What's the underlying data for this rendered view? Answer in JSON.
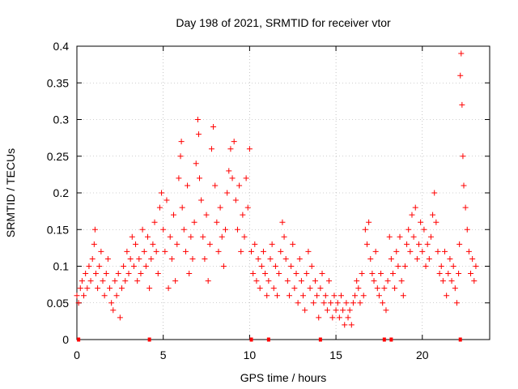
{
  "chart_data": {
    "type": "scatter",
    "title": "Day 198 of 2021, SRMTID for receiver vtor",
    "xlabel": "GPS time / hours",
    "ylabel": "SRMTID / TECUs",
    "xlim": [
      0,
      23.9
    ],
    "ylim": [
      0,
      0.4
    ],
    "xticks": [
      0,
      5,
      10,
      15,
      20
    ],
    "yticks": [
      0,
      0.05,
      0.1,
      0.15,
      0.2,
      0.25,
      0.3,
      0.35,
      0.4
    ],
    "ytick_labels": [
      "0",
      "0.05",
      "0.1",
      "0.15",
      "0.2",
      "0.25",
      "0.3",
      "0.35",
      "0.4"
    ],
    "grid": true,
    "marker": "+",
    "color": "#ff0000",
    "gap_markers_x": [
      0.1,
      4.2,
      10.1,
      11.1,
      14.1,
      17.8,
      18.2,
      22.2
    ],
    "series": [
      {
        "name": "SRMTID",
        "points": [
          [
            0.0,
            0.06
          ],
          [
            0.1,
            0.05
          ],
          [
            0.2,
            0.07
          ],
          [
            0.3,
            0.08
          ],
          [
            0.4,
            0.06
          ],
          [
            0.5,
            0.09
          ],
          [
            0.6,
            0.07
          ],
          [
            0.7,
            0.1
          ],
          [
            0.8,
            0.08
          ],
          [
            0.9,
            0.11
          ],
          [
            1.0,
            0.13
          ],
          [
            1.05,
            0.15
          ],
          [
            1.1,
            0.09
          ],
          [
            1.2,
            0.07
          ],
          [
            1.3,
            0.1
          ],
          [
            1.4,
            0.12
          ],
          [
            1.5,
            0.08
          ],
          [
            1.6,
            0.06
          ],
          [
            1.7,
            0.09
          ],
          [
            1.8,
            0.11
          ],
          [
            1.9,
            0.07
          ],
          [
            2.0,
            0.05
          ],
          [
            2.1,
            0.04
          ],
          [
            2.2,
            0.08
          ],
          [
            2.3,
            0.06
          ],
          [
            2.4,
            0.09
          ],
          [
            2.5,
            0.03
          ],
          [
            2.6,
            0.07
          ],
          [
            2.7,
            0.1
          ],
          [
            2.8,
            0.08
          ],
          [
            2.9,
            0.12
          ],
          [
            3.0,
            0.09
          ],
          [
            3.1,
            0.11
          ],
          [
            3.2,
            0.14
          ],
          [
            3.3,
            0.1
          ],
          [
            3.4,
            0.13
          ],
          [
            3.5,
            0.08
          ],
          [
            3.6,
            0.11
          ],
          [
            3.7,
            0.09
          ],
          [
            3.8,
            0.15
          ],
          [
            3.9,
            0.12
          ],
          [
            4.0,
            0.1
          ],
          [
            4.1,
            0.14
          ],
          [
            4.2,
            0.07
          ],
          [
            4.3,
            0.11
          ],
          [
            4.4,
            0.13
          ],
          [
            4.5,
            0.16
          ],
          [
            4.6,
            0.12
          ],
          [
            4.7,
            0.09
          ],
          [
            4.8,
            0.18
          ],
          [
            4.9,
            0.2
          ],
          [
            5.0,
            0.15
          ],
          [
            5.1,
            0.12
          ],
          [
            5.2,
            0.19
          ],
          [
            5.3,
            0.07
          ],
          [
            5.4,
            0.14
          ],
          [
            5.5,
            0.11
          ],
          [
            5.6,
            0.17
          ],
          [
            5.7,
            0.08
          ],
          [
            5.8,
            0.13
          ],
          [
            5.9,
            0.22
          ],
          [
            6.0,
            0.25
          ],
          [
            6.05,
            0.27
          ],
          [
            6.1,
            0.18
          ],
          [
            6.2,
            0.15
          ],
          [
            6.3,
            0.12
          ],
          [
            6.4,
            0.21
          ],
          [
            6.5,
            0.09
          ],
          [
            6.6,
            0.14
          ],
          [
            6.7,
            0.11
          ],
          [
            6.8,
            0.16
          ],
          [
            6.9,
            0.24
          ],
          [
            7.0,
            0.3
          ],
          [
            7.05,
            0.28
          ],
          [
            7.1,
            0.22
          ],
          [
            7.2,
            0.19
          ],
          [
            7.3,
            0.14
          ],
          [
            7.4,
            0.11
          ],
          [
            7.5,
            0.17
          ],
          [
            7.6,
            0.08
          ],
          [
            7.7,
            0.13
          ],
          [
            7.8,
            0.26
          ],
          [
            7.9,
            0.29
          ],
          [
            8.0,
            0.21
          ],
          [
            8.1,
            0.16
          ],
          [
            8.2,
            0.12
          ],
          [
            8.3,
            0.18
          ],
          [
            8.4,
            0.14
          ],
          [
            8.5,
            0.1
          ],
          [
            8.6,
            0.15
          ],
          [
            8.7,
            0.2
          ],
          [
            8.8,
            0.23
          ],
          [
            8.9,
            0.26
          ],
          [
            9.0,
            0.22
          ],
          [
            9.1,
            0.27
          ],
          [
            9.2,
            0.19
          ],
          [
            9.3,
            0.15
          ],
          [
            9.4,
            0.21
          ],
          [
            9.5,
            0.12
          ],
          [
            9.6,
            0.17
          ],
          [
            9.7,
            0.14
          ],
          [
            9.8,
            0.22
          ],
          [
            9.9,
            0.18
          ],
          [
            10.0,
            0.26
          ],
          [
            10.1,
            0.12
          ],
          [
            10.2,
            0.09
          ],
          [
            10.3,
            0.13
          ],
          [
            10.4,
            0.08
          ],
          [
            10.5,
            0.11
          ],
          [
            10.6,
            0.07
          ],
          [
            10.7,
            0.1
          ],
          [
            10.8,
            0.12
          ],
          [
            10.9,
            0.09
          ],
          [
            11.0,
            0.06
          ],
          [
            11.1,
            0.08
          ],
          [
            11.2,
            0.11
          ],
          [
            11.3,
            0.13
          ],
          [
            11.4,
            0.07
          ],
          [
            11.5,
            0.1
          ],
          [
            11.6,
            0.06
          ],
          [
            11.7,
            0.09
          ],
          [
            11.8,
            0.12
          ],
          [
            11.9,
            0.16
          ],
          [
            12.0,
            0.14
          ],
          [
            12.1,
            0.11
          ],
          [
            12.2,
            0.08
          ],
          [
            12.3,
            0.06
          ],
          [
            12.4,
            0.1
          ],
          [
            12.5,
            0.13
          ],
          [
            12.6,
            0.07
          ],
          [
            12.7,
            0.09
          ],
          [
            12.8,
            0.05
          ],
          [
            12.9,
            0.11
          ],
          [
            13.0,
            0.08
          ],
          [
            13.1,
            0.06
          ],
          [
            13.2,
            0.04
          ],
          [
            13.3,
            0.09
          ],
          [
            13.4,
            0.12
          ],
          [
            13.5,
            0.07
          ],
          [
            13.6,
            0.1
          ],
          [
            13.7,
            0.05
          ],
          [
            13.8,
            0.08
          ],
          [
            13.9,
            0.06
          ],
          [
            14.0,
            0.03
          ],
          [
            14.1,
            0.07
          ],
          [
            14.2,
            0.09
          ],
          [
            14.3,
            0.05
          ],
          [
            14.4,
            0.06
          ],
          [
            14.5,
            0.04
          ],
          [
            14.6,
            0.08
          ],
          [
            14.7,
            0.05
          ],
          [
            14.8,
            0.03
          ],
          [
            14.9,
            0.06
          ],
          [
            15.0,
            0.04
          ],
          [
            15.1,
            0.05
          ],
          [
            15.2,
            0.03
          ],
          [
            15.3,
            0.06
          ],
          [
            15.4,
            0.04
          ],
          [
            15.5,
            0.02
          ],
          [
            15.6,
            0.05
          ],
          [
            15.7,
            0.03
          ],
          [
            15.8,
            0.04
          ],
          [
            15.9,
            0.02
          ],
          [
            16.0,
            0.05
          ],
          [
            16.1,
            0.06
          ],
          [
            16.2,
            0.08
          ],
          [
            16.3,
            0.07
          ],
          [
            16.4,
            0.05
          ],
          [
            16.5,
            0.09
          ],
          [
            16.6,
            0.06
          ],
          [
            16.7,
            0.15
          ],
          [
            16.8,
            0.13
          ],
          [
            16.9,
            0.16
          ],
          [
            17.0,
            0.11
          ],
          [
            17.1,
            0.09
          ],
          [
            17.2,
            0.08
          ],
          [
            17.3,
            0.12
          ],
          [
            17.4,
            0.07
          ],
          [
            17.5,
            0.06
          ],
          [
            17.6,
            0.09
          ],
          [
            17.7,
            0.05
          ],
          [
            17.8,
            0.07
          ],
          [
            17.9,
            0.04
          ],
          [
            18.0,
            0.08
          ],
          [
            18.1,
            0.14
          ],
          [
            18.2,
            0.11
          ],
          [
            18.3,
            0.09
          ],
          [
            18.4,
            0.07
          ],
          [
            18.5,
            0.12
          ],
          [
            18.6,
            0.1
          ],
          [
            18.7,
            0.14
          ],
          [
            18.8,
            0.08
          ],
          [
            18.9,
            0.06
          ],
          [
            19.0,
            0.1
          ],
          [
            19.1,
            0.13
          ],
          [
            19.2,
            0.15
          ],
          [
            19.3,
            0.12
          ],
          [
            19.4,
            0.17
          ],
          [
            19.5,
            0.14
          ],
          [
            19.6,
            0.18
          ],
          [
            19.7,
            0.11
          ],
          [
            19.8,
            0.13
          ],
          [
            19.9,
            0.16
          ],
          [
            20.0,
            0.12
          ],
          [
            20.1,
            0.15
          ],
          [
            20.2,
            0.1
          ],
          [
            20.3,
            0.13
          ],
          [
            20.4,
            0.11
          ],
          [
            20.5,
            0.14
          ],
          [
            20.6,
            0.17
          ],
          [
            20.7,
            0.2
          ],
          [
            20.8,
            0.16
          ],
          [
            20.9,
            0.12
          ],
          [
            21.0,
            0.09
          ],
          [
            21.1,
            0.1
          ],
          [
            21.2,
            0.08
          ],
          [
            21.3,
            0.12
          ],
          [
            21.4,
            0.06
          ],
          [
            21.5,
            0.09
          ],
          [
            21.6,
            0.11
          ],
          [
            21.7,
            0.08
          ],
          [
            21.8,
            0.1
          ],
          [
            21.9,
            0.07
          ],
          [
            22.0,
            0.05
          ],
          [
            22.1,
            0.09
          ],
          [
            22.15,
            0.13
          ],
          [
            22.2,
            0.36
          ],
          [
            22.25,
            0.39
          ],
          [
            22.3,
            0.32
          ],
          [
            22.35,
            0.25
          ],
          [
            22.4,
            0.21
          ],
          [
            22.5,
            0.18
          ],
          [
            22.6,
            0.15
          ],
          [
            22.7,
            0.12
          ],
          [
            22.8,
            0.09
          ],
          [
            22.9,
            0.11
          ],
          [
            23.0,
            0.08
          ],
          [
            23.1,
            0.1
          ]
        ]
      }
    ]
  }
}
